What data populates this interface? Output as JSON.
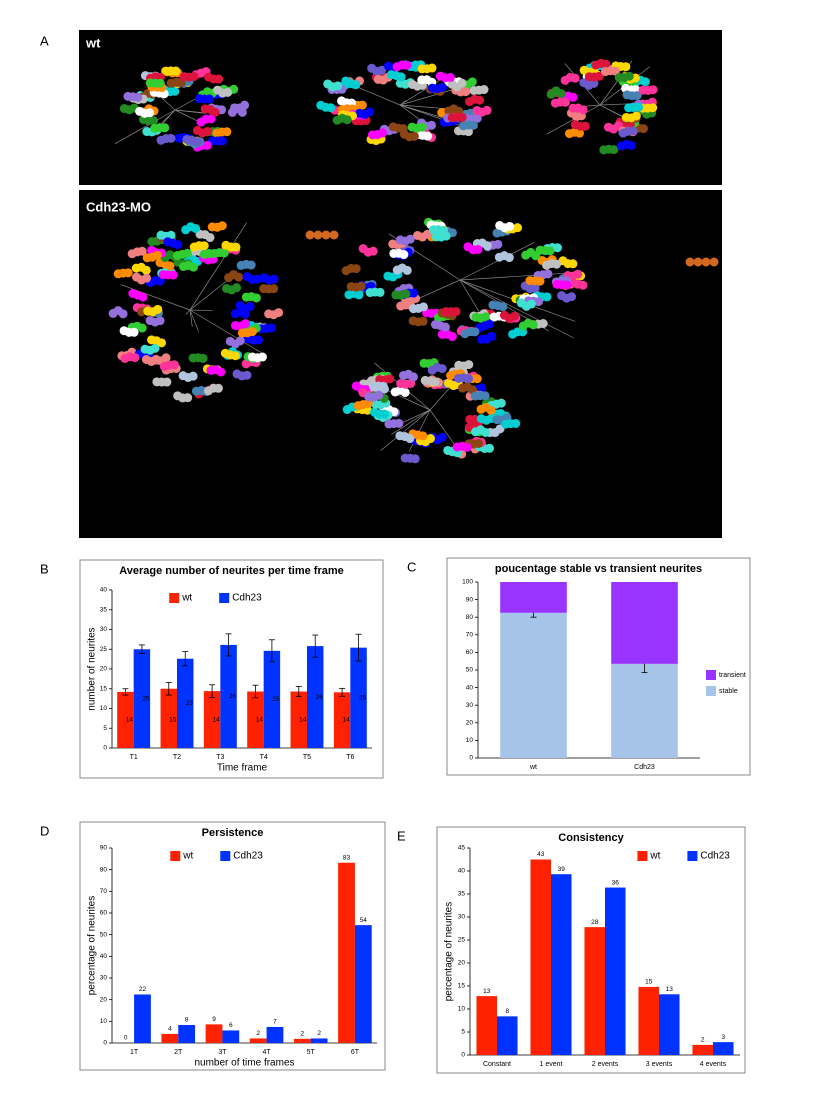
{
  "panel_a": {
    "letter": "A",
    "images": [
      {
        "label": "wt"
      },
      {
        "label": "Cdh23-MO"
      }
    ]
  },
  "chart_data": [
    {
      "type": "bar",
      "panel": "B",
      "title": "Average number of neurites per time frame",
      "y_label": "number of neurites",
      "x_label": "Time frame",
      "categories": [
        "T1",
        "T2",
        "T3",
        "T4",
        "T5",
        "T6"
      ],
      "series": [
        {
          "name": "wt",
          "color": "#ff2200",
          "values": [
            14.2,
            15.0,
            14.4,
            14.3,
            14.3,
            14.1
          ],
          "errors": [
            0.8,
            1.6,
            1.6,
            1.6,
            1.3,
            1.0
          ],
          "value_labels": [
            "14",
            "15",
            "14",
            "14",
            "14",
            "14"
          ]
        },
        {
          "name": "Cdh23",
          "color": "#0033ff",
          "values": [
            25.0,
            22.6,
            26.1,
            24.6,
            25.8,
            25.4
          ],
          "errors": [
            1.1,
            1.8,
            2.8,
            2.8,
            2.8,
            3.4
          ],
          "value_labels": [
            "25",
            "23",
            "26",
            "25",
            "26",
            "25"
          ]
        }
      ],
      "ylim": [
        0,
        40
      ],
      "yticks": [
        0,
        5,
        10,
        15,
        20,
        25,
        30,
        35,
        40
      ],
      "legend": "top"
    },
    {
      "type": "stacked_bar",
      "panel": "C",
      "title": "poucentage stable vs transient neurites",
      "categories": [
        "wt",
        "Cdh23"
      ],
      "series": [
        {
          "name": "stable",
          "color": "#a6c4e8",
          "values": [
            82.5,
            53.5
          ],
          "errors": [
            2.5,
            5.0
          ]
        },
        {
          "name": "transient",
          "color": "#9933ff",
          "values": [
            17.5,
            46.5
          ]
        }
      ],
      "ylim": [
        0,
        100
      ],
      "yticks": [
        0,
        10,
        20,
        30,
        40,
        50,
        60,
        70,
        80,
        90,
        100
      ],
      "legend": "right"
    },
    {
      "type": "bar",
      "panel": "D",
      "title": "Persistence",
      "y_label": "percentage of neurites",
      "x_label": "number of time frames",
      "categories": [
        "1T",
        "2T",
        "3T",
        "4T",
        "5T",
        "6T"
      ],
      "series": [
        {
          "name": "wt",
          "color": "#ff2200",
          "values": [
            0,
            4.2,
            8.6,
            2.1,
            1.9,
            83.2
          ],
          "value_labels": [
            "0",
            "4",
            "9",
            "2",
            "2",
            "83"
          ]
        },
        {
          "name": "Cdh23",
          "color": "#0033ff",
          "values": [
            22.4,
            8.3,
            5.8,
            7.4,
            2.1,
            54.4
          ],
          "value_labels": [
            "22",
            "8",
            "6",
            "7",
            "2",
            "54"
          ]
        }
      ],
      "ylim": [
        0,
        90
      ],
      "yticks": [
        0,
        10,
        20,
        30,
        40,
        50,
        60,
        70,
        80,
        90
      ],
      "legend": "top"
    },
    {
      "type": "bar",
      "panel": "E",
      "title": "Consistency",
      "y_label": "percentage of neurites",
      "categories": [
        "Constant",
        "1 event",
        "2 events",
        "3 events",
        "4 events"
      ],
      "series": [
        {
          "name": "wt",
          "color": "#ff2200",
          "values": [
            12.8,
            42.5,
            27.8,
            14.8,
            2.2
          ],
          "value_labels": [
            "13",
            "43",
            "28",
            "15",
            "2"
          ]
        },
        {
          "name": "Cdh23",
          "color": "#0033ff",
          "values": [
            8.4,
            39.3,
            36.4,
            13.2,
            2.8
          ],
          "value_labels": [
            "8",
            "39",
            "36",
            "13",
            "3"
          ]
        }
      ],
      "ylim": [
        0,
        45
      ],
      "yticks": [
        0,
        5,
        10,
        15,
        20,
        25,
        30,
        35,
        40,
        45
      ],
      "legend": "top-right"
    }
  ]
}
